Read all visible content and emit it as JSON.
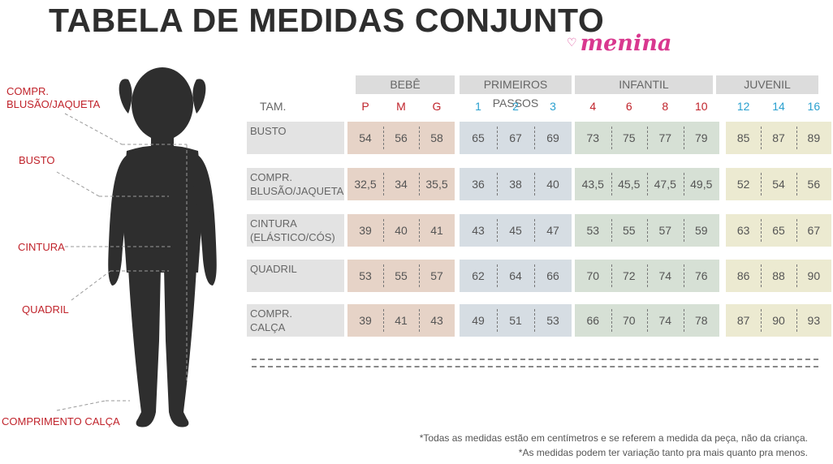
{
  "header": {
    "title": "TABELA DE MEDIDAS CONJUNTO",
    "brand": "menina"
  },
  "body_labels": {
    "compr_blusao": "COMPR.\nBLUSÃO/JAQUETA",
    "busto": "BUSTO",
    "cintura": "CINTURA",
    "quadril": "QUADRIL",
    "comprimento_calca": "COMPRIMENTO CALÇA"
  },
  "table": {
    "tam_label": "TAM.",
    "groups": [
      {
        "name": "BEBÊ",
        "color": "#e6d3c7",
        "head_color": "#c0232b",
        "sizes": [
          "P",
          "M",
          "G"
        ]
      },
      {
        "name": "PRIMEIROS PASSOS",
        "color": "#d6dde3",
        "head_color": "#2aa0cf",
        "sizes": [
          "1",
          "2",
          "3"
        ]
      },
      {
        "name": "INFANTIL",
        "color": "#d6e0d5",
        "head_color": "#c0232b",
        "sizes": [
          "4",
          "6",
          "8",
          "10"
        ]
      },
      {
        "name": "JUVENIL",
        "color": "#ecead1",
        "head_color": "#2aa0cf",
        "sizes": [
          "12",
          "14",
          "16"
        ]
      }
    ],
    "rows": [
      {
        "label": "BUSTO",
        "values": [
          "54",
          "56",
          "58",
          "65",
          "67",
          "69",
          "73",
          "75",
          "77",
          "79",
          "85",
          "87",
          "89"
        ]
      },
      {
        "label": "COMPR.\nBLUSÃO/JAQUETA",
        "values": [
          "32,5",
          "34",
          "35,5",
          "36",
          "38",
          "40",
          "43,5",
          "45,5",
          "47,5",
          "49,5",
          "52",
          "54",
          "56"
        ]
      },
      {
        "label": "CINTURA\n(ELÁSTICO/CÓS)",
        "values": [
          "39",
          "40",
          "41",
          "43",
          "45",
          "47",
          "53",
          "55",
          "57",
          "59",
          "63",
          "65",
          "67"
        ]
      },
      {
        "label": "QUADRIL",
        "values": [
          "53",
          "55",
          "57",
          "62",
          "64",
          "66",
          "70",
          "72",
          "74",
          "76",
          "86",
          "88",
          "90"
        ]
      },
      {
        "label": "COMPR.\nCALÇA",
        "values": [
          "39",
          "41",
          "43",
          "49",
          "51",
          "53",
          "66",
          "70",
          "74",
          "78",
          "87",
          "90",
          "93"
        ]
      }
    ]
  },
  "notes": {
    "line1": "*Todas as medidas estão em centímetros e se referem a medida da peça, não da criança.",
    "line2": "*As medidas podem ter variação tanto pra mais quanto pra menos."
  }
}
